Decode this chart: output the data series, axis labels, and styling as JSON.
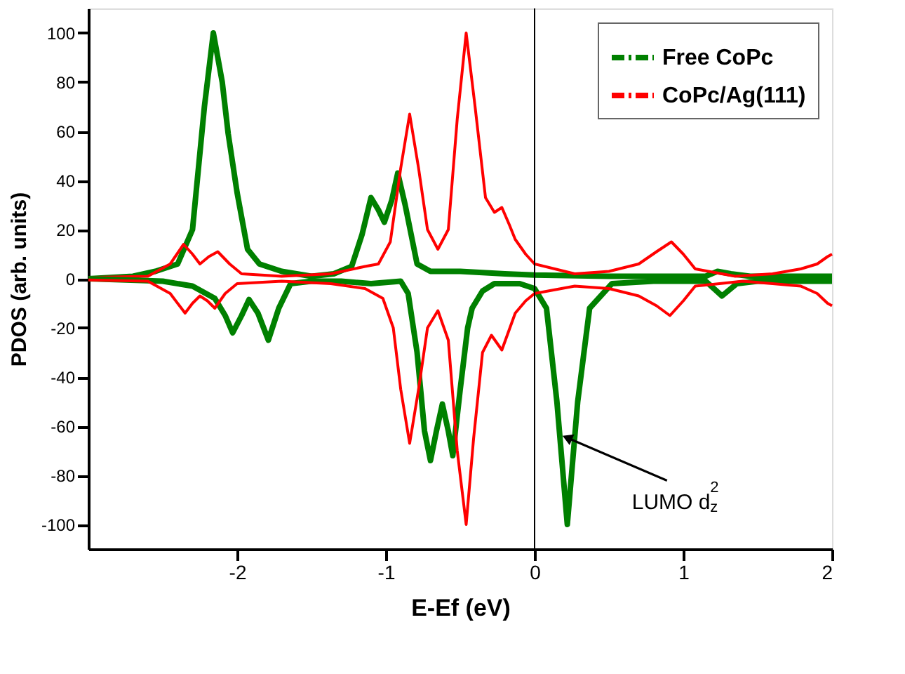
{
  "chart_data": {
    "type": "line",
    "xlabel": "E-Ef (eV)",
    "ylabel": "PDOS (arb. units)",
    "xlim": [
      -3,
      2
    ],
    "xticks": [
      -2,
      -1,
      0,
      1,
      2
    ],
    "ylim": [
      -110,
      110
    ],
    "yticks": [
      -100,
      -80,
      -60,
      -40,
      -20,
      0,
      20,
      40,
      60,
      80,
      100
    ],
    "grid": false,
    "legend": "top right",
    "line_style": "solid",
    "marker": "none",
    "ref_lines": [
      {
        "axis": "x",
        "value": 0,
        "color": "#000000"
      }
    ],
    "annotations": [
      {
        "text": "LUMO d$_{z}$$^{2}$",
        "x": 0.23,
        "y": -65
      }
    ],
    "series": [
      {
        "name": "Free CoPc",
        "color": "#008000",
        "x": [
          -3.0,
          -2.7,
          -2.55,
          -2.4,
          -2.3,
          -2.22,
          -2.16,
          -2.1,
          -2.06,
          -2.0,
          -1.93,
          -1.85,
          -1.7,
          -1.5,
          -1.35,
          -1.23,
          -1.16,
          -1.1,
          -1.05,
          -1.01,
          -0.96,
          -0.92,
          -0.87,
          -0.79,
          -0.7,
          -0.5,
          -0.2,
          0.0,
          0.5,
          1.0,
          1.15,
          1.23,
          1.32,
          1.45,
          2.0
        ],
        "values": [
          0,
          1,
          3,
          6,
          20,
          70,
          100,
          80,
          59,
          35,
          12,
          6,
          3,
          1,
          2,
          5,
          18,
          33,
          28,
          23,
          32,
          43,
          30,
          6,
          3,
          3,
          2,
          1.5,
          1,
          1,
          1,
          3,
          2,
          1,
          1
        ]
      },
      {
        "color": "#008000",
        "x": [
          -3.0,
          -2.5,
          -2.3,
          -2.15,
          -2.08,
          -2.03,
          -1.97,
          -1.92,
          -1.86,
          -1.79,
          -1.72,
          -1.64,
          -1.5,
          -1.3,
          -1.1,
          -0.9,
          -0.85,
          -0.79,
          -0.74,
          -0.7,
          -0.66,
          -0.62,
          -0.58,
          -0.55,
          -0.5,
          -0.45,
          -0.42,
          -0.35,
          -0.27,
          -0.1,
          0.0,
          0.08,
          0.15,
          0.22,
          0.29,
          0.37,
          0.52,
          0.8,
          1.15,
          1.26,
          1.36,
          1.5,
          2.0
        ],
        "values": [
          0,
          -1,
          -3,
          -8,
          -15,
          -22,
          -15,
          -8.5,
          -14,
          -25,
          -12,
          -2,
          -1,
          -1,
          -2,
          -1,
          -6,
          -30,
          -62,
          -74,
          -62,
          -51,
          -62,
          -72,
          -45,
          -20,
          -12,
          -5,
          -2,
          -2,
          -4,
          -12,
          -50,
          -100,
          -50,
          -12,
          -2,
          -1,
          -1,
          -7,
          -2,
          -1,
          -1
        ]
      },
      {
        "name": "CoPc/Ag(111)",
        "color": "#ff0000",
        "x": [
          -3.0,
          -2.6,
          -2.45,
          -2.36,
          -2.3,
          -2.25,
          -2.19,
          -2.13,
          -2.05,
          -1.97,
          -1.7,
          -1.37,
          -1.14,
          -1.05,
          -0.97,
          -0.9,
          -0.84,
          -0.78,
          -0.72,
          -0.65,
          -0.58,
          -0.52,
          -0.46,
          -0.4,
          -0.33,
          -0.27,
          -0.22,
          -0.17,
          -0.13,
          -0.06,
          0.0,
          0.27,
          0.5,
          0.7,
          0.82,
          0.92,
          1.0,
          1.08,
          1.35,
          1.6,
          1.79,
          1.9,
          1.97,
          2.0
        ],
        "values": [
          0.5,
          1,
          6,
          14,
          10,
          6,
          9,
          11,
          6,
          2,
          1,
          2,
          5,
          6,
          15,
          45,
          67,
          45,
          20,
          12,
          20,
          65,
          100,
          70,
          33,
          27,
          29,
          22,
          16,
          10,
          6,
          2,
          3,
          6,
          11,
          15,
          10,
          4,
          1,
          2,
          4,
          6,
          9,
          10
        ]
      },
      {
        "color": "#ff0000",
        "x": [
          -3.0,
          -2.6,
          -2.45,
          -2.35,
          -2.3,
          -2.25,
          -2.2,
          -2.15,
          -2.08,
          -2.0,
          -1.7,
          -1.37,
          -1.14,
          -1.02,
          -0.95,
          -0.9,
          -0.84,
          -0.78,
          -0.72,
          -0.65,
          -0.58,
          -0.52,
          -0.46,
          -0.41,
          -0.35,
          -0.29,
          -0.22,
          -0.13,
          -0.06,
          0.0,
          0.27,
          0.5,
          0.7,
          0.82,
          0.91,
          1.0,
          1.08,
          1.4,
          1.6,
          1.79,
          1.9,
          1.97,
          2.0
        ],
        "values": [
          -0.5,
          -1,
          -6,
          -14,
          -10,
          -7,
          -9,
          -12,
          -6,
          -2,
          -1,
          -2,
          -4,
          -8,
          -20,
          -45,
          -67,
          -45,
          -20,
          -13,
          -25,
          -70,
          -100,
          -65,
          -30,
          -23,
          -29,
          -14,
          -9,
          -6,
          -3,
          -4,
          -7,
          -11,
          -15,
          -9,
          -3,
          -1,
          -2,
          -3,
          -6,
          -10,
          -11
        ]
      }
    ]
  }
}
